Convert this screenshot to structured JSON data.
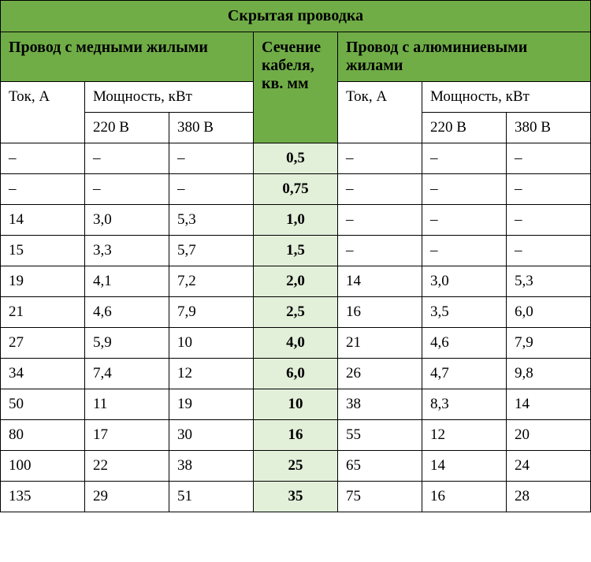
{
  "table": {
    "title": "Скрытая проводка",
    "copper_header": "Провод с медными жилыми",
    "aluminum_header": "Провод с алюминиевыми жилами",
    "section_header": "Сечение кабеля, кв. мм",
    "current_label": "Ток, А",
    "power_label": "Мощность, кВт",
    "voltage_220": "220 В",
    "voltage_380": "380 В",
    "colors": {
      "header_bg": "#70ad47",
      "center_bg": "#e2efd9",
      "border": "#000000",
      "background": "#ffffff",
      "text": "#000000"
    },
    "fonts": {
      "header_size": 20,
      "cell_size": 19,
      "family": "Times New Roman"
    },
    "rows": [
      {
        "cu_current": "–",
        "cu_220": "–",
        "cu_380": "–",
        "section": "0,5",
        "al_current": "–",
        "al_220": "–",
        "al_380": "–"
      },
      {
        "cu_current": "–",
        "cu_220": "–",
        "cu_380": "–",
        "section": "0,75",
        "al_current": "–",
        "al_220": "–",
        "al_380": "–"
      },
      {
        "cu_current": "14",
        "cu_220": "3,0",
        "cu_380": "5,3",
        "section": "1,0",
        "al_current": "–",
        "al_220": "–",
        "al_380": "–"
      },
      {
        "cu_current": "15",
        "cu_220": "3,3",
        "cu_380": "5,7",
        "section": "1,5",
        "al_current": "–",
        "al_220": "–",
        "al_380": "–"
      },
      {
        "cu_current": "19",
        "cu_220": "4,1",
        "cu_380": "7,2",
        "section": "2,0",
        "al_current": "14",
        "al_220": "3,0",
        "al_380": "5,3"
      },
      {
        "cu_current": "21",
        "cu_220": "4,6",
        "cu_380": "7,9",
        "section": "2,5",
        "al_current": "16",
        "al_220": "3,5",
        "al_380": "6,0"
      },
      {
        "cu_current": "27",
        "cu_220": "5,9",
        "cu_380": "10",
        "section": "4,0",
        "al_current": "21",
        "al_220": "4,6",
        "al_380": "7,9"
      },
      {
        "cu_current": "34",
        "cu_220": "7,4",
        "cu_380": "12",
        "section": "6,0",
        "al_current": "26",
        "al_220": "4,7",
        "al_380": "9,8"
      },
      {
        "cu_current": "50",
        "cu_220": "11",
        "cu_380": "19",
        "section": "10",
        "al_current": "38",
        "al_220": "8,3",
        "al_380": "14"
      },
      {
        "cu_current": "80",
        "cu_220": "17",
        "cu_380": "30",
        "section": "16",
        "al_current": "55",
        "al_220": "12",
        "al_380": "20"
      },
      {
        "cu_current": "100",
        "cu_220": "22",
        "cu_380": "38",
        "section": "25",
        "al_current": "65",
        "al_220": "14",
        "al_380": "24"
      },
      {
        "cu_current": "135",
        "cu_220": "29",
        "cu_380": "51",
        "section": "35",
        "al_current": "75",
        "al_220": "16",
        "al_380": "28"
      }
    ]
  }
}
